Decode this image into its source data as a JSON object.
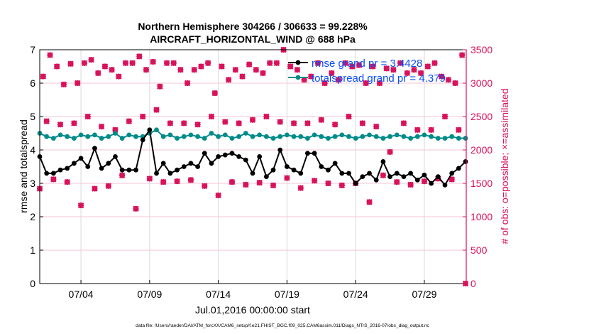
{
  "chart_data": {
    "type": "line",
    "title": [
      "Northern Hemisphere 304266 / 306633 = 99.228%",
      "AIRCRAFT_HORIZONTAL_WIND @ 688 hPa"
    ],
    "xlabel": "Jul.01,2016 00:00:00 start",
    "ylabel": "rmse and totalspread",
    "ylabel_right": "# of obs: o=possible; ×=assimilated",
    "xlim": [
      0,
      31.05
    ],
    "ylim": [
      0,
      7
    ],
    "ylim_right": [
      0,
      3500
    ],
    "x_ticks": [
      {
        "day": 3,
        "label": "07/04"
      },
      {
        "day": 8,
        "label": "07/09"
      },
      {
        "day": 13,
        "label": "07/14"
      },
      {
        "day": 18,
        "label": "07/19"
      },
      {
        "day": 23,
        "label": "07/24"
      },
      {
        "day": 28,
        "label": "07/29"
      }
    ],
    "y_ticks": [
      "0",
      "1",
      "2",
      "3",
      "4",
      "5",
      "6",
      "7"
    ],
    "y_ticks_right": [
      "0",
      "500",
      "1000",
      "1500",
      "2000",
      "2500",
      "3000",
      "3500"
    ],
    "grid": true,
    "legend_position": "top-right",
    "colors": {
      "rmse": "#000000",
      "spread": "#008b8b",
      "obs": "#d8125b",
      "legend_text": "#0a4cff",
      "hgrid": "#f3c6d6",
      "vgrid": "#d9d9d9"
    },
    "series": [
      {
        "name": "rmse grand pr = 3.4428",
        "x_step": 0.5,
        "values": [
          3.8,
          3.3,
          3.3,
          3.4,
          3.45,
          3.6,
          3.75,
          3.5,
          4.05,
          3.45,
          3.6,
          3.8,
          3.4,
          3.4,
          3.4,
          4.3,
          4.6,
          3.3,
          3.6,
          3.3,
          3.4,
          3.5,
          3.6,
          3.5,
          3.9,
          3.6,
          3.8,
          3.85,
          3.9,
          3.8,
          3.7,
          3.3,
          3.8,
          3.2,
          3.4,
          4.0,
          3.5,
          3.4,
          3.3,
          3.9,
          3.9,
          3.5,
          3.4,
          3.6,
          3.3,
          3.3,
          3.0,
          3.2,
          3.3,
          3.1,
          3.65,
          3.2,
          3.3,
          3.2,
          3.3,
          3.1,
          3.25,
          3.0,
          3.2,
          2.95,
          3.3,
          3.45,
          3.65
        ]
      },
      {
        "name": "totalspread grand pr = 4.379",
        "x_step": 0.5,
        "values": [
          4.5,
          4.4,
          4.35,
          4.45,
          4.4,
          4.35,
          4.45,
          4.4,
          4.45,
          4.35,
          4.4,
          4.5,
          4.35,
          4.45,
          4.4,
          4.4,
          4.5,
          4.6,
          4.4,
          4.45,
          4.35,
          4.4,
          4.45,
          4.4,
          4.35,
          4.5,
          4.4,
          4.45,
          4.35,
          4.4,
          4.5,
          4.4,
          4.45,
          4.4,
          4.35,
          4.4,
          4.45,
          4.4,
          4.4,
          4.35,
          4.45,
          4.4,
          4.35,
          4.4,
          4.45,
          4.4,
          4.35,
          4.4,
          4.45,
          4.4,
          4.35,
          4.4,
          4.45,
          4.4,
          4.35,
          4.4,
          4.45,
          4.4,
          4.35,
          4.35,
          4.4,
          4.35,
          4.35
        ]
      },
      {
        "name": "obs possible / assimilated",
        "x_step": 0.25,
        "values": [
          1420,
          3100,
          2430,
          3420,
          1560,
          3250,
          2380,
          2980,
          1520,
          3290,
          2400,
          3000,
          1170,
          3300,
          2500,
          3350,
          1420,
          3150,
          2350,
          3250,
          1460,
          3200,
          2300,
          3100,
          1620,
          3300,
          2430,
          3300,
          1120,
          3400,
          2500,
          3200,
          1570,
          3320,
          2600,
          2950,
          1520,
          3300,
          2400,
          3300,
          1530,
          3200,
          2400,
          3000,
          1550,
          3200,
          2380,
          3250,
          1460,
          3300,
          2500,
          2850,
          1320,
          3250,
          2420,
          3050,
          1520,
          3200,
          2400,
          3100,
          1480,
          3280,
          2450,
          3200,
          1510,
          3150,
          2500,
          3300,
          1470,
          3300,
          2420,
          3500,
          1580,
          3250,
          2400,
          3200,
          1430,
          3050,
          2400,
          3100,
          1540,
          3300,
          2450,
          3000,
          1500,
          3150,
          2380,
          3050,
          1470,
          3300,
          2500,
          3250,
          1500,
          3270,
          2400,
          3000,
          1220,
          3250,
          2350,
          3000,
          1620,
          3220,
          1970,
          3200,
          1520,
          3300,
          2400,
          3150,
          1480,
          3200,
          2300,
          3150,
          1530,
          3250,
          2300,
          3300,
          1570,
          3100,
          2500,
          3050,
          1560,
          3000,
          2300,
          3420,
          0
        ]
      }
    ],
    "data_file": "data file: /Users/raeder/DAI/ATM_forcXX/CAM6_setup/f.e21.FHIST_BGC.f09_025.CAM6assim.011/Diags_NTrS_2016-07/obs_diag_output.nc"
  }
}
